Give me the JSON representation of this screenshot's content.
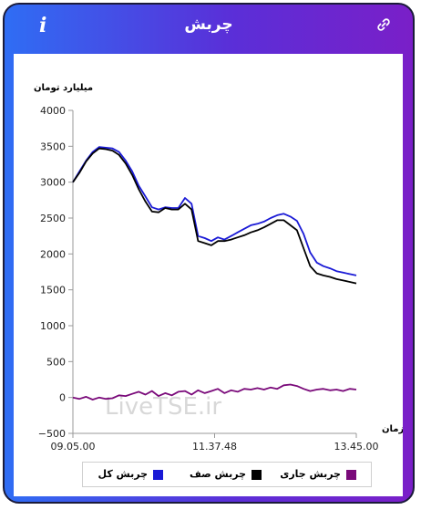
{
  "header": {
    "title": "چربش",
    "info_icon": "info-icon",
    "link_icon": "link-icon"
  },
  "chart_data": {
    "type": "line",
    "ylabel": "میلیارد تومان",
    "xlabel": "زمان",
    "ylim": [
      -500,
      4000
    ],
    "y_ticks": [
      "4000",
      "3500",
      "3000",
      "2500",
      "2000",
      "1500",
      "1000",
      "500",
      "0",
      "−500"
    ],
    "x_ticks": [
      "09.05.00",
      "11.37.48",
      "13.45.00"
    ],
    "watermark": "LiveTSE.ir",
    "series": [
      {
        "name": "چربش کل",
        "color": "#1a1ad6",
        "values": [
          3000,
          3150,
          3300,
          3420,
          3490,
          3480,
          3470,
          3420,
          3300,
          3150,
          2950,
          2800,
          2650,
          2620,
          2650,
          2640,
          2640,
          2780,
          2700,
          2250,
          2220,
          2180,
          2230,
          2200,
          2250,
          2300,
          2350,
          2400,
          2420,
          2450,
          2500,
          2540,
          2560,
          2520,
          2460,
          2280,
          2020,
          1880,
          1830,
          1800,
          1760,
          1740,
          1720,
          1700
        ]
      },
      {
        "name": "چربش صف",
        "color": "#000000",
        "values": [
          3000,
          3130,
          3290,
          3400,
          3470,
          3460,
          3440,
          3380,
          3260,
          3100,
          2900,
          2730,
          2590,
          2580,
          2640,
          2620,
          2620,
          2700,
          2620,
          2180,
          2150,
          2120,
          2180,
          2180,
          2200,
          2230,
          2260,
          2300,
          2330,
          2370,
          2420,
          2470,
          2470,
          2400,
          2330,
          2080,
          1830,
          1730,
          1700,
          1680,
          1650,
          1630,
          1610,
          1590
        ]
      },
      {
        "name": "چربش جاری",
        "color": "#7a0a7a",
        "values": [
          0,
          -20,
          10,
          -30,
          0,
          -20,
          -10,
          30,
          20,
          50,
          80,
          40,
          90,
          20,
          60,
          30,
          80,
          90,
          40,
          100,
          60,
          90,
          120,
          60,
          100,
          80,
          120,
          110,
          130,
          110,
          140,
          120,
          170,
          180,
          160,
          120,
          90,
          110,
          120,
          100,
          110,
          90,
          120,
          110
        ]
      }
    ]
  }
}
